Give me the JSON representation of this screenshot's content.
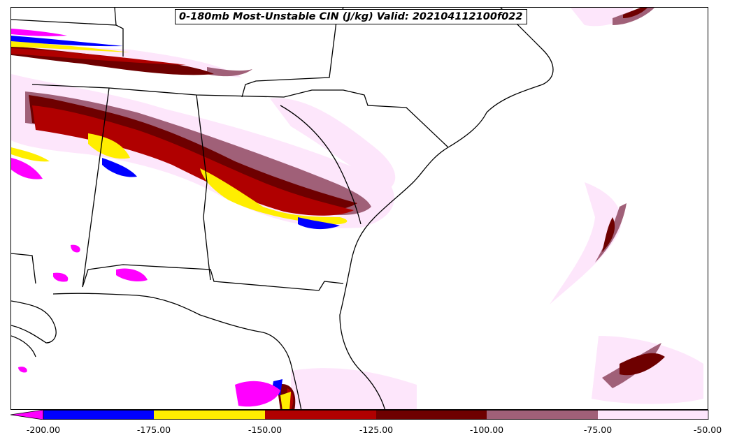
{
  "title": "0-180mb Most-Unstable CIN (J/kg) Valid: 202104112100f022",
  "colorbar": {
    "levels": [
      -200,
      -175,
      -150,
      -125,
      -100,
      -75,
      -50
    ],
    "tick_labels": [
      "-200.00",
      "-175.00",
      "-150.00",
      "-125.00",
      "-100.00",
      "-75.00",
      "-50.00"
    ],
    "extend": "min",
    "colors": {
      "below_min": "#ff00ff",
      "b1": "#0000ff",
      "b2": "#ffee00",
      "b3": "#b00000",
      "b4": "#6e0000",
      "b5": "#a06078",
      "b6": "#fde6fb"
    }
  }
}
